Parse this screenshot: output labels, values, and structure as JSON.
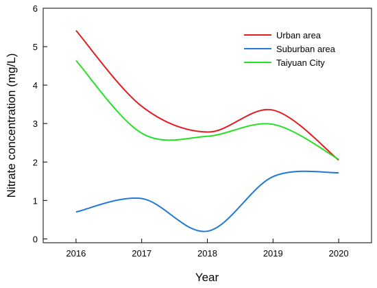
{
  "chart_data": {
    "type": "line",
    "xlabel": "Year",
    "ylabel": "Nitrate concentration (mg/L)",
    "x": [
      2016,
      2017,
      2018,
      2019,
      2020
    ],
    "x_tick_labels": [
      "2016",
      "2017",
      "2018",
      "2019",
      "2020"
    ],
    "xlim": [
      2015.5,
      2020.5
    ],
    "ylim": [
      -0.1,
      6
    ],
    "y_ticks": [
      0,
      1,
      2,
      3,
      4,
      5,
      6
    ],
    "y_tick_labels": [
      "0",
      "1",
      "2",
      "3",
      "4",
      "5",
      "6"
    ],
    "grid": false,
    "smooth": true,
    "legend_position": "top-right",
    "series": [
      {
        "name": "Urban area",
        "color": "#e41a1c",
        "values": [
          5.42,
          3.45,
          2.78,
          3.35,
          2.05
        ]
      },
      {
        "name": "Suburban area",
        "color": "#1f78d7",
        "values": [
          0.7,
          1.05,
          0.2,
          1.62,
          1.72
        ]
      },
      {
        "name": "Taiyuan City",
        "color": "#22e022",
        "values": [
          4.64,
          2.75,
          2.67,
          2.98,
          2.07
        ]
      }
    ]
  }
}
